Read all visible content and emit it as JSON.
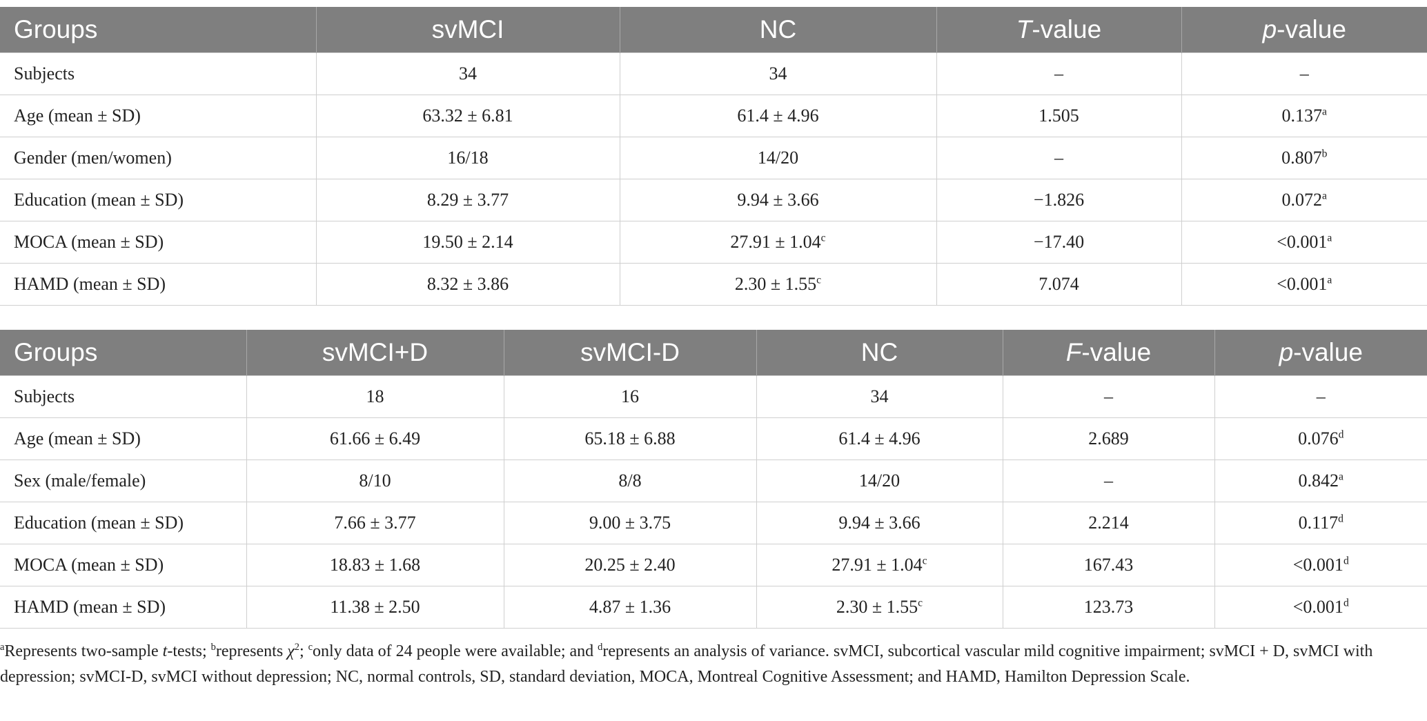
{
  "tables": [
    {
      "header": [
        "Groups",
        "svMCI",
        "NC",
        {
          "italic": "T",
          "text": "-value"
        },
        {
          "italic": "p",
          "text": "-value"
        }
      ],
      "rows": [
        [
          "Subjects",
          "34",
          "34",
          "–",
          "–"
        ],
        [
          "Age (mean ± SD)",
          "63.32 ± 6.81",
          "61.4 ± 4.96",
          "1.505",
          {
            "text": "0.137",
            "sup": "a"
          }
        ],
        [
          "Gender (men/women)",
          "16/18",
          "14/20",
          "–",
          {
            "text": "0.807",
            "sup": "b"
          }
        ],
        [
          "Education (mean ± SD)",
          "8.29 ± 3.77",
          "9.94 ± 3.66",
          "−1.826",
          {
            "text": "0.072",
            "sup": "a"
          }
        ],
        [
          "MOCA (mean ± SD)",
          "19.50 ± 2.14",
          {
            "text": "27.91 ± 1.04",
            "sup": "c"
          },
          "−17.40",
          {
            "text": "<0.001",
            "sup": "a"
          }
        ],
        [
          "HAMD (mean ± SD)",
          "8.32 ± 3.86",
          {
            "text": "2.30 ± 1.55",
            "sup": "c"
          },
          "7.074",
          {
            "text": "<0.001",
            "sup": "a"
          }
        ]
      ]
    },
    {
      "header": [
        "Groups",
        "svMCI+D",
        "svMCI-D",
        "NC",
        {
          "italic": "F",
          "text": "-value"
        },
        {
          "italic": "p",
          "text": "-value"
        }
      ],
      "rows": [
        [
          "Subjects",
          "18",
          "16",
          "34",
          "–",
          "–"
        ],
        [
          "Age (mean ± SD)",
          "61.66 ± 6.49",
          "65.18 ± 6.88",
          "61.4 ± 4.96",
          "2.689",
          {
            "text": "0.076",
            "sup": "d"
          }
        ],
        [
          "Sex (male/female)",
          "8/10",
          "8/8",
          "14/20",
          "–",
          {
            "text": "0.842",
            "sup": "a"
          }
        ],
        [
          "Education (mean ± SD)",
          "7.66 ± 3.77",
          "9.00 ± 3.75",
          "9.94 ± 3.66",
          "2.214",
          {
            "text": "0.117",
            "sup": "d"
          }
        ],
        [
          "MOCA (mean ± SD)",
          "18.83 ± 1.68",
          "20.25 ± 2.40",
          {
            "text": "27.91 ± 1.04",
            "sup": "c"
          },
          "167.43",
          {
            "text": "<0.001",
            "sup": "d"
          }
        ],
        [
          "HAMD (mean ± SD)",
          "11.38 ± 2.50",
          "4.87 ± 1.36",
          {
            "text": "2.30 ± 1.55",
            "sup": "c"
          },
          "123.73",
          {
            "text": "<0.001",
            "sup": "d"
          }
        ]
      ]
    }
  ],
  "footnote": [
    {
      "sup": "a"
    },
    {
      "text": "Represents two-sample "
    },
    {
      "italic": "t"
    },
    {
      "text": "-tests; "
    },
    {
      "sup": "b"
    },
    {
      "text": "represents "
    },
    {
      "italic": "χ"
    },
    {
      "sup": "2"
    },
    {
      "text": "; "
    },
    {
      "sup": "c"
    },
    {
      "text": "only data of 24 people were available; and "
    },
    {
      "sup": "d"
    },
    {
      "text": "represents an analysis of variance. svMCI, subcortical vascular mild cognitive impairment; svMCI + D, svMCI with depression; svMCI-D, svMCI without depression; NC, normal controls, SD, standard deviation, MOCA, Montreal Cognitive Assessment; and HAMD, Hamilton Depression Scale."
    }
  ]
}
